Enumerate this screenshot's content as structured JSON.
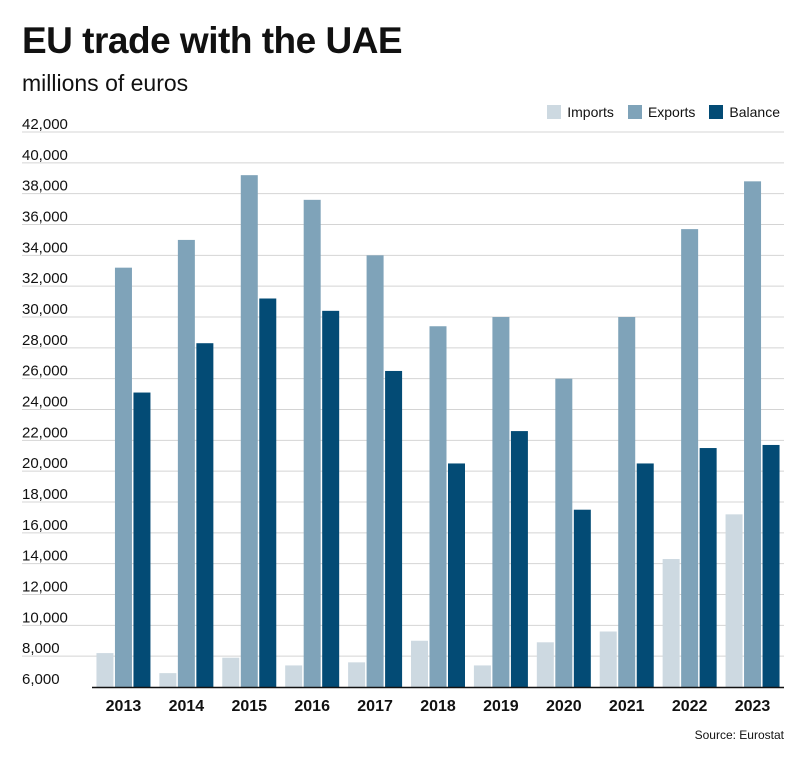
{
  "chart_data": {
    "type": "bar",
    "title": "EU trade with the UAE",
    "subtitle": "millions of euros",
    "categories": [
      "2013",
      "2014",
      "2015",
      "2016",
      "2017",
      "2018",
      "2019",
      "2020",
      "2021",
      "2022",
      "2023"
    ],
    "series": [
      {
        "name": "Imports",
        "color": "#cdd9e1",
        "values": [
          8200,
          6900,
          7900,
          7400,
          7600,
          9000,
          7400,
          8900,
          9600,
          14300,
          17200
        ]
      },
      {
        "name": "Exports",
        "color": "#7fa3b9",
        "values": [
          33200,
          35000,
          39200,
          37600,
          34000,
          29400,
          30000,
          26000,
          30000,
          35700,
          38800
        ]
      },
      {
        "name": "Balance",
        "color": "#034b75",
        "values": [
          25100,
          28300,
          31200,
          30400,
          26500,
          20500,
          22600,
          17500,
          20500,
          21500,
          21700
        ]
      }
    ],
    "yticks": [
      6000,
      8000,
      10000,
      12000,
      14000,
      16000,
      18000,
      20000,
      22000,
      24000,
      26000,
      28000,
      30000,
      32000,
      34000,
      36000,
      38000,
      40000,
      42000
    ],
    "ylim": [
      6000,
      42000
    ],
    "grid": true,
    "legend": "top-right",
    "xlabel": "",
    "ylabel": "",
    "source": "Source: Eurostat"
  }
}
